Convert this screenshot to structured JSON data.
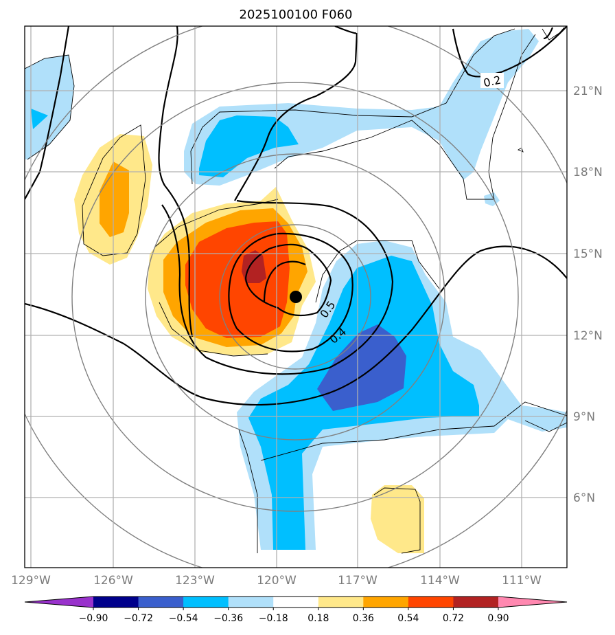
{
  "title": "2025100100 F060",
  "map": {
    "lon_labels": [
      "129°W",
      "126°W",
      "123°W",
      "120°W",
      "117°W",
      "114°W",
      "111°W"
    ],
    "lat_labels": [
      "21°N",
      "18°N",
      "15°N",
      "12°N",
      "9°N",
      "6°N"
    ],
    "storm_center": {
      "lon": -119.3,
      "lat": 13.4
    },
    "contour_labels": [
      "0.2",
      "0.5",
      "0.4"
    ]
  },
  "colorbar": {
    "ticks": [
      "−0.90",
      "−0.72",
      "−0.54",
      "−0.36",
      "−0.18",
      "0.18",
      "0.36",
      "0.54",
      "0.72",
      "0.90"
    ],
    "colors": [
      "#9932cc",
      "#00008b",
      "#3a5fcd",
      "#00bfff",
      "#b0e0fa",
      "#ffffff",
      "#ffe88a",
      "#ffa500",
      "#ff4500",
      "#b22222",
      "#ff88b0"
    ]
  },
  "colors": {
    "light_blue": "#b0e0fa",
    "blue": "#00bfff",
    "royal_blue": "#3a5fcd",
    "yellow": "#ffe88a",
    "orange": "#ffa500",
    "orange_red": "#ff4500",
    "dark_red": "#b22222"
  }
}
